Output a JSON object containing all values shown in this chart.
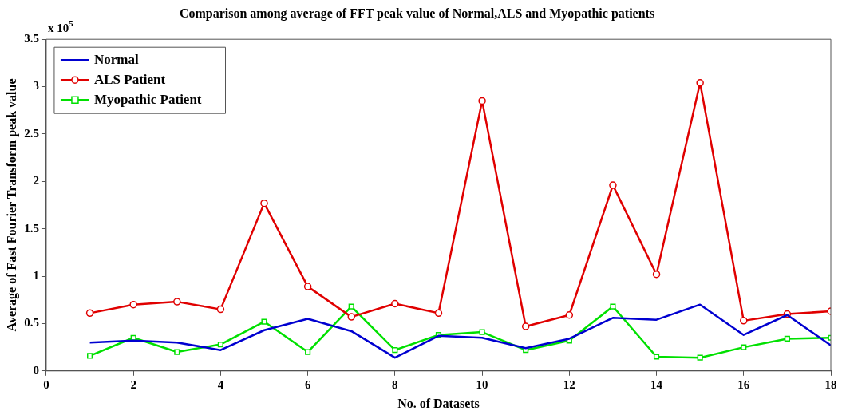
{
  "chart_data": {
    "type": "line",
    "title": "Comparison among average of FFT peak value of Normal,ALS and Myopathic patients",
    "xlabel": "No. of Datasets",
    "ylabel": "Average of Fast Fourier Transform peak value",
    "annotations": [
      "x 10$^{5}$"
    ],
    "x": [
      1,
      2,
      3,
      4,
      5,
      6,
      7,
      8,
      9,
      10,
      11,
      12,
      13,
      14,
      15,
      16,
      17,
      18
    ],
    "series": [
      {
        "name": "Normal",
        "color": "#0000d0",
        "marker": "none",
        "values": [
          0.3,
          0.32,
          0.3,
          0.22,
          0.43,
          0.55,
          0.42,
          0.14,
          0.37,
          0.35,
          0.24,
          0.34,
          0.56,
          0.54,
          0.7,
          0.38,
          0.59,
          0.27
        ]
      },
      {
        "name": "ALS Patient",
        "color": "#e00000",
        "marker": "circle",
        "values": [
          0.61,
          0.7,
          0.73,
          0.65,
          1.77,
          0.89,
          0.57,
          0.71,
          0.61,
          2.85,
          0.47,
          0.59,
          1.96,
          1.02,
          3.04,
          0.53,
          0.6,
          0.63
        ]
      },
      {
        "name": "Myopathic Patient",
        "color": "#00e000",
        "marker": "square",
        "values": [
          0.16,
          0.35,
          0.2,
          0.28,
          0.52,
          0.2,
          0.68,
          0.22,
          0.38,
          0.41,
          0.22,
          0.32,
          0.68,
          0.15,
          0.14,
          0.25,
          0.34,
          0.35
        ]
      }
    ],
    "xlim": [
      0,
      18
    ],
    "xticks": [
      0,
      2,
      4,
      6,
      8,
      10,
      12,
      14,
      16,
      18
    ],
    "ylim": [
      0,
      3.5
    ],
    "yticks": [
      0,
      0.5,
      1,
      1.5,
      2,
      2.5,
      3,
      3.5
    ],
    "grid": false,
    "legend": "top left",
    "line_style": "solid"
  }
}
